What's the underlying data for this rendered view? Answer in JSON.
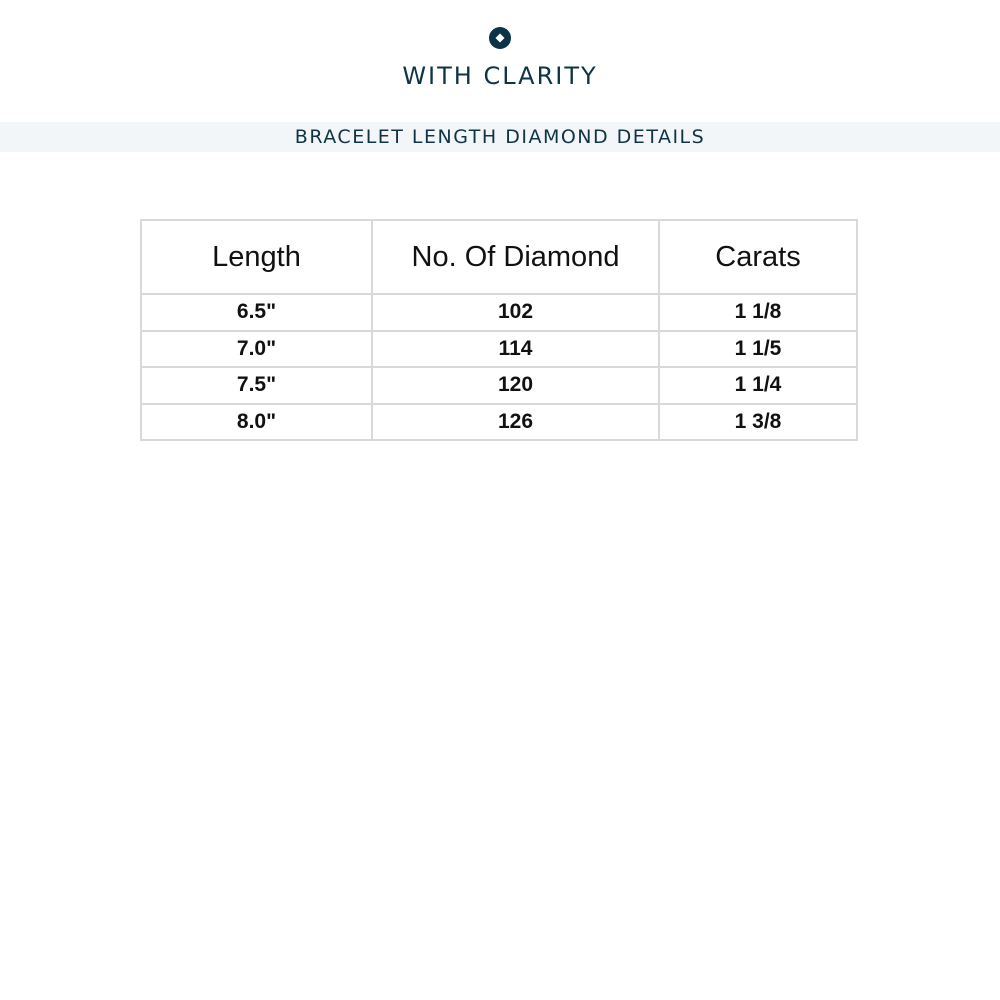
{
  "brand": {
    "name": "WITH CLARITY",
    "logo_icon": "diamond-in-circle",
    "color": "#0f3446"
  },
  "banner": {
    "title": "BRACELET LENGTH DIAMOND DETAILS"
  },
  "table": {
    "headers": [
      "Length",
      "No. Of Diamond",
      "Carats"
    ],
    "rows": [
      [
        "6.5\"",
        "102",
        "1 1/8"
      ],
      [
        "7.0\"",
        "114",
        "1 1/5"
      ],
      [
        "7.5\"",
        "120",
        "1 1/4"
      ],
      [
        "8.0\"",
        "126",
        "1 3/8"
      ]
    ]
  }
}
